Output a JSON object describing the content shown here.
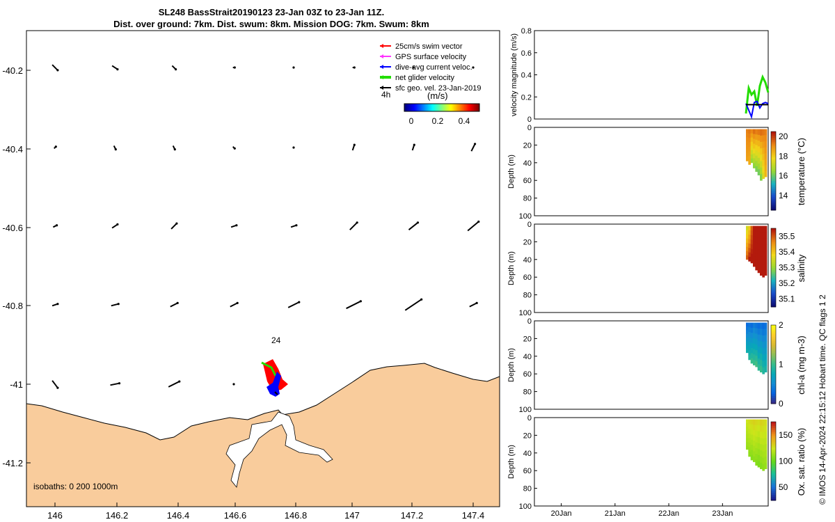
{
  "title_line1": "SL248 BassStrait20190123 23-Jan 03Z to 23-Jan 11Z.",
  "title_line2": "Dist. over ground: 7km. Dist. swum: 8km. Mission DOG: 7km. Swum: 8km",
  "colors": {
    "land": "#f9cc9c",
    "swim": "#ff0000",
    "gps": "#ff33ff",
    "dive_avg": "#0000ff",
    "net": "#22dd00",
    "geo": "#000000"
  },
  "map": {
    "xticks": [
      "146",
      "146.2",
      "146.4",
      "146.6",
      "146.8",
      "147",
      "147.2",
      "147.4"
    ],
    "yticks": [
      "-40.2",
      "-40.4",
      "-40.6",
      "-40.8",
      "-41",
      "-41.2"
    ],
    "legend": [
      {
        "label": "25cm/s swim vector",
        "color": "#ff0000"
      },
      {
        "label": "GPS surface velocity",
        "color": "#ff33ff"
      },
      {
        "label": "dive-avg current veloc.",
        "color": "#0000ff"
      },
      {
        "label": "net glider velocity",
        "color": "#22dd00"
      },
      {
        "label": "sfc geo. vel. 23-Jan-2019",
        "color": "#000000"
      }
    ],
    "label_4h": "4h",
    "colorbar_title": "(m/s)",
    "colorbar_ticks": [
      "0",
      "0.2",
      "0.4"
    ],
    "label_24": "24",
    "isobaths": "isobaths: 0   200  1000m"
  },
  "chart_data": [
    {
      "type": "line",
      "title": "",
      "ylabel": "velocity magnitude (m/s)",
      "ylim": [
        0,
        0.8
      ],
      "yticks": [
        "0",
        "0.2",
        "0.4",
        "0.6",
        "0.8"
      ],
      "series": [
        {
          "color": "#22dd00",
          "x": [
            "23-Jan 03Z",
            "23-Jan 04Z",
            "23-Jan 05Z",
            "23-Jan 06Z",
            "23-Jan 07Z",
            "23-Jan 08Z",
            "23-Jan 09Z",
            "23-Jan 10Z",
            "23-Jan 11Z"
          ],
          "values": [
            0.05,
            0.28,
            0.22,
            0.25,
            0.12,
            0.3,
            0.38,
            0.33,
            0.24
          ]
        },
        {
          "color": "#0000ff",
          "x": [
            "23-Jan 03Z",
            "23-Jan 04Z",
            "23-Jan 05Z",
            "23-Jan 06Z",
            "23-Jan 07Z",
            "23-Jan 08Z",
            "23-Jan 09Z",
            "23-Jan 10Z",
            "23-Jan 11Z"
          ],
          "values": [
            0.14,
            0.08,
            0.02,
            0.15,
            0.16,
            0.1,
            0.14,
            0.15,
            0.14
          ]
        },
        {
          "color": "#000000",
          "x": [
            "23-Jan 03Z",
            "23-Jan 11Z"
          ],
          "values": [
            0.13,
            0.13
          ]
        }
      ]
    },
    {
      "type": "heatmap",
      "ylabel": "Depth (m)",
      "ylim": [
        100,
        0
      ],
      "yticks": [
        "0",
        "20",
        "40",
        "60",
        "80",
        "100"
      ],
      "colorbar_label": "temperature (°C)",
      "colorbar_ticks": [
        "14",
        "16",
        "18",
        "20"
      ],
      "range": [
        12.5,
        20.5
      ],
      "max_depth": [
        38,
        42,
        40,
        46,
        50,
        54,
        60,
        58,
        56
      ],
      "values_surface": [
        19.3,
        19.4,
        19.2,
        19.5,
        19.3,
        19.4,
        19.5,
        19.4,
        19.3
      ],
      "values_bottom": [
        18.8,
        18.6,
        16.5,
        16.4,
        16.2,
        16.1,
        16.3,
        17.5,
        18.5
      ]
    },
    {
      "type": "heatmap",
      "ylabel": "Depth (m)",
      "ylim": [
        100,
        0
      ],
      "yticks": [
        "0",
        "20",
        "40",
        "60",
        "80",
        "100"
      ],
      "colorbar_label": "salinity",
      "colorbar_ticks": [
        "35.1",
        "35.2",
        "35.3",
        "35.4",
        "35.5"
      ],
      "range": [
        35.05,
        35.55
      ],
      "max_depth": [
        40,
        42,
        44,
        48,
        52,
        55,
        58,
        60,
        58
      ],
      "values_surface": [
        35.35,
        35.4,
        35.5,
        35.55,
        35.56,
        35.56,
        35.56,
        35.56,
        35.56
      ],
      "values_bottom": [
        35.5,
        35.55,
        35.56,
        35.56,
        35.56,
        35.56,
        35.56,
        35.56,
        35.56
      ]
    },
    {
      "type": "heatmap",
      "ylabel": "Depth (m)",
      "ylim": [
        100,
        0
      ],
      "yticks": [
        "0",
        "20",
        "40",
        "60",
        "80",
        "100"
      ],
      "colorbar_label": "chl-a (mg m-3)",
      "colorbar_ticks": [
        "0",
        "1",
        "2"
      ],
      "range": [
        0,
        2
      ],
      "max_depth": [
        36,
        44,
        48,
        50,
        52,
        56,
        58,
        60,
        58
      ],
      "values_surface": [
        0.3,
        0.35,
        0.3,
        0.4,
        0.35,
        0.3,
        0.35,
        0.3,
        0.35
      ],
      "values_bottom": [
        0.8,
        0.9,
        1.0,
        1.0,
        1.05,
        0.95,
        1.0,
        0.9,
        0.85
      ]
    },
    {
      "type": "heatmap",
      "ylabel": "Depth (m)",
      "ylim": [
        100,
        0
      ],
      "yticks": [
        "0",
        "20",
        "40",
        "60",
        "80",
        "100"
      ],
      "colorbar_label": "Ox. sat. ratio (%)",
      "colorbar_ticks": [
        "50",
        "100",
        "150"
      ],
      "range": [
        25,
        175
      ],
      "max_depth": [
        36,
        44,
        48,
        50,
        54,
        56,
        58,
        60,
        58
      ],
      "values_surface": [
        125,
        128,
        130,
        132,
        130,
        128,
        132,
        130,
        128
      ],
      "values_bottom": [
        112,
        110,
        108,
        110,
        108,
        106,
        108,
        110,
        112
      ],
      "xticks": [
        "20Jan",
        "21Jan",
        "22Jan",
        "23Jan"
      ]
    }
  ],
  "side_label": "© IMOS 14-Apr-2024 22:15:12 Hobart time. QC flags 1  2"
}
